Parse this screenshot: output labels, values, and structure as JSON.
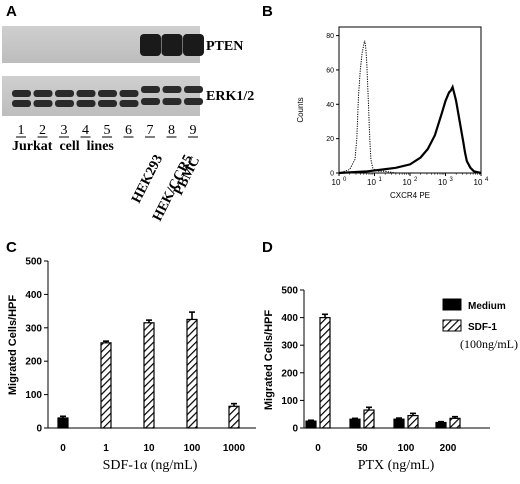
{
  "panels": {
    "A": {
      "letter": "A",
      "blots": [
        {
          "label": "PTEN",
          "band_presence": [
            0,
            0,
            0,
            0,
            0,
            0,
            1,
            1,
            1
          ]
        },
        {
          "label": "ERK1/2",
          "band_presence": [
            1,
            1,
            1,
            1,
            1,
            1,
            1,
            1,
            1
          ]
        }
      ],
      "lanes": [
        "1",
        "2",
        "3",
        "4",
        "5",
        "6",
        "7",
        "8",
        "9"
      ],
      "group_label": "Jurkat  cell  lines",
      "rotated_labels": [
        "HEK293",
        "HEK/CCR5",
        "PBMC"
      ]
    },
    "B": {
      "letter": "B",
      "ylabel": "Counts",
      "xlabel": "CXCR4 PE",
      "x_ticks": [
        {
          "base": "10",
          "exp": "0",
          "v": 0
        },
        {
          "base": "10",
          "exp": "1",
          "v": 1
        },
        {
          "base": "10",
          "exp": "2",
          "v": 2
        },
        {
          "base": "10",
          "exp": "3",
          "v": 3
        },
        {
          "base": "10",
          "exp": "4",
          "v": 4
        }
      ],
      "y_ticks": [
        "0",
        "20",
        "40",
        "60",
        "80"
      ],
      "xlim": [
        0,
        4
      ],
      "ylim": [
        0,
        85
      ]
    },
    "C": {
      "letter": "C",
      "ylabel": "Migrated Cells/HPF",
      "xlabel": "SDF-1α (ng/mL)"
    },
    "D": {
      "letter": "D",
      "ylabel": "Migrated Cells/HPF",
      "xlabel": "PTX (ng/mL)",
      "legend": [
        {
          "label": "Medium",
          "style": "solid"
        },
        {
          "label": "SDF-1",
          "style": "hatched"
        }
      ],
      "legend_note": "(100ng/mL)"
    }
  },
  "chart_data": [
    {
      "panel": "B",
      "type": "line",
      "x_scale": "log",
      "xlim": [
        0,
        4
      ],
      "ylim": [
        0,
        85
      ],
      "series": [
        {
          "style": "dotted",
          "x": [
            0.0,
            0.3,
            0.45,
            0.5,
            0.55,
            0.6,
            0.65,
            0.7,
            0.72,
            0.75,
            0.78,
            0.8,
            0.83,
            0.85,
            0.88,
            0.9,
            0.95,
            1.0,
            1.1,
            1.3,
            1.6,
            2.0,
            2.5,
            3.0,
            3.5,
            4.0
          ],
          "y": [
            0,
            2,
            8,
            20,
            45,
            60,
            70,
            75,
            77,
            74,
            65,
            55,
            40,
            28,
            15,
            8,
            3,
            2,
            1,
            1,
            0,
            0,
            0,
            0,
            0,
            0
          ]
        },
        {
          "style": "solid",
          "x": [
            0.0,
            0.8,
            1.2,
            1.6,
            2.0,
            2.3,
            2.5,
            2.7,
            2.9,
            3.0,
            3.1,
            3.15,
            3.2,
            3.25,
            3.3,
            3.35,
            3.4,
            3.45,
            3.5,
            3.55,
            3.6,
            3.7,
            3.8,
            4.0
          ],
          "y": [
            0,
            1,
            2,
            3,
            5,
            9,
            14,
            22,
            35,
            42,
            47,
            48,
            50,
            46,
            42,
            36,
            30,
            24,
            18,
            12,
            7,
            3,
            1,
            0
          ]
        }
      ]
    },
    {
      "panel": "C",
      "type": "bar",
      "categories": [
        "0",
        "1",
        "10",
        "100",
        "1000"
      ],
      "values": [
        30,
        255,
        315,
        325,
        65
      ],
      "errors": [
        5,
        5,
        8,
        22,
        8
      ],
      "fill": [
        "solid",
        "hatched",
        "hatched",
        "hatched",
        "hatched"
      ],
      "ylim": [
        0,
        500
      ],
      "yticks": [
        "0",
        "100",
        "200",
        "300",
        "400",
        "500"
      ],
      "xlabel": "SDF-1α (ng/mL)",
      "ylabel": "Migrated Cells/HPF"
    },
    {
      "panel": "D",
      "type": "bar",
      "categories": [
        "0",
        "50",
        "100",
        "200"
      ],
      "series": [
        {
          "name": "Medium",
          "values": [
            25,
            32,
            32,
            20
          ],
          "errors": [
            3,
            3,
            4,
            3
          ],
          "fill": "solid"
        },
        {
          "name": "SDF-1",
          "values": [
            400,
            65,
            45,
            35
          ],
          "errors": [
            12,
            10,
            8,
            6
          ],
          "fill": "hatched"
        }
      ],
      "ylim": [
        0,
        500
      ],
      "yticks": [
        "0",
        "100",
        "200",
        "300",
        "400",
        "500"
      ],
      "xlabel": "PTX (ng/mL)",
      "ylabel": "Migrated Cells/HPF"
    }
  ]
}
